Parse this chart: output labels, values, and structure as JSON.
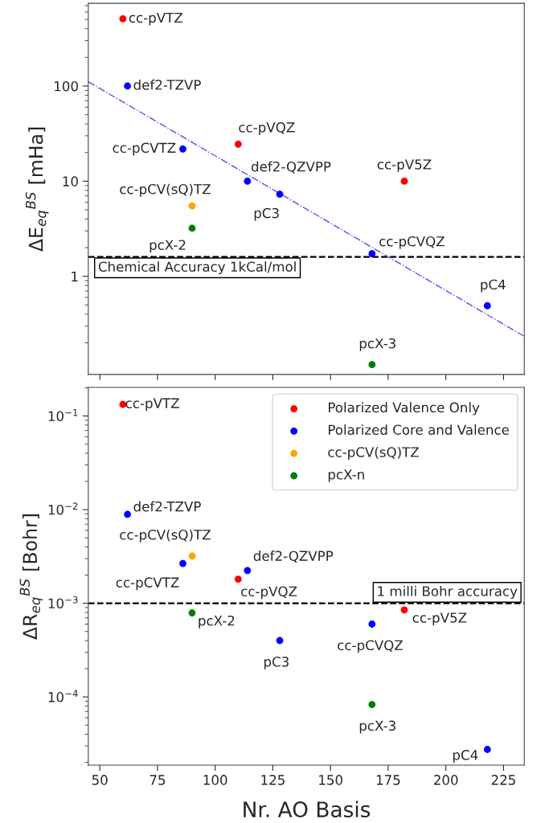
{
  "chart_data": [
    {
      "type": "scatter",
      "ylabel": "ΔE$_{eq}$$^{BS}$ [mHa]",
      "log": "y",
      "marker": "circle",
      "tick_labels": "y",
      "legend": false,
      "xlim": [
        45,
        234
      ],
      "xticks": [
        50,
        75,
        100,
        125,
        150,
        175,
        200,
        225
      ],
      "ylim": [
        0.093,
        740
      ],
      "yticks": [
        1,
        10,
        100
      ],
      "series": [
        {
          "color": "#ff0000",
          "x": [
            60,
            110,
            182
          ],
          "values": [
            508,
            24.5,
            10
          ]
        },
        {
          "color": "#0000ff",
          "x": [
            62,
            86,
            114,
            128,
            168,
            218
          ],
          "values": [
            100,
            21.8,
            10,
            7.3,
            1.73,
            0.49
          ]
        },
        {
          "color": "#ffa500",
          "x": [
            90
          ],
          "values": [
            5.5
          ]
        },
        {
          "color": "#008000",
          "x": [
            90,
            168
          ],
          "values": [
            3.2,
            0.118
          ]
        },
        {
          "type": "line",
          "color": "#5050ff",
          "line_style": "dashdot",
          "marker": "none",
          "x": [
            45,
            234
          ],
          "values": [
            111,
            0.234
          ]
        }
      ],
      "ref_lines": [
        {
          "axis": "y",
          "value": 1.6,
          "label": "Chemical Accuracy 1kCal/mol",
          "color": "#000000",
          "line_style": "dashed"
        }
      ],
      "annotations": [
        {
          "text": "cc-pVTZ",
          "x": 60,
          "y": 508
        },
        {
          "text": "def2-TZVP",
          "x": 62,
          "y": 100
        },
        {
          "text": "cc-pCVTZ",
          "x": 86,
          "y": 21.8
        },
        {
          "text": "cc-pVQZ",
          "x": 110,
          "y": 24.5
        },
        {
          "text": "def2-QZVPP",
          "x": 114,
          "y": 10
        },
        {
          "text": "pC3",
          "x": 128,
          "y": 7.3
        },
        {
          "text": "cc-pV5Z",
          "x": 182,
          "y": 10
        },
        {
          "text": "cc-pCV(sQ)TZ",
          "x": 90,
          "y": 5.5
        },
        {
          "text": "pcX-2",
          "x": 90,
          "y": 3.2
        },
        {
          "text": "cc-pCVQZ",
          "x": 168,
          "y": 1.73
        },
        {
          "text": "pC4",
          "x": 218,
          "y": 0.49
        },
        {
          "text": "pcX-3",
          "x": 168,
          "y": 0.118
        }
      ]
    },
    {
      "type": "scatter",
      "ylabel": "ΔR$_{eq}$$^{BS}$ [Bohr]",
      "xlabel": "Nr. AO Basis",
      "log": "y",
      "marker": "circle",
      "legend": "top right",
      "xlim": [
        45,
        234
      ],
      "xticks": [
        50,
        75,
        100,
        125,
        150,
        175,
        200,
        225
      ],
      "ylim": [
        1.87e-05,
        0.202
      ],
      "yticks": [
        {
          "value": 0.1,
          "label": "10$^{−1}$"
        },
        {
          "value": 0.01,
          "label": "10$^{−2}$"
        },
        {
          "value": 0.001,
          "label": "10$^{−3}$"
        },
        {
          "value": 0.0001,
          "label": "10$^{−4}$"
        }
      ],
      "series": [
        {
          "name": "Polarized Valence Only",
          "color": "#ff0000",
          "x": [
            60,
            110,
            182
          ],
          "values": [
            0.133,
            0.00181,
            0.00085
          ]
        },
        {
          "name": "Polarized Core and Valence",
          "color": "#0000ff",
          "x": [
            62,
            86,
            114,
            128,
            168,
            218
          ],
          "values": [
            0.0089,
            0.00266,
            0.00224,
            0.0004,
            0.0006,
            2.75e-05
          ]
        },
        {
          "name": "cc-pCV(sQ)TZ",
          "color": "#ffa500",
          "x": [
            90
          ],
          "values": [
            0.0032
          ]
        },
        {
          "name": "pcX-n",
          "color": "#008000",
          "x": [
            90,
            168
          ],
          "values": [
            0.00079,
            8.3e-05
          ]
        }
      ],
      "ref_lines": [
        {
          "axis": "y",
          "value": 0.001,
          "label": "1 milli Bohr accuracy",
          "color": "#000000",
          "line_style": "dashed"
        }
      ],
      "annotations": [
        {
          "text": "cc-pVTZ",
          "x": 60,
          "y": 0.133
        },
        {
          "text": "def2-TZVP",
          "x": 62,
          "y": 0.0089
        },
        {
          "text": "cc-pCV(sQ)TZ",
          "x": 90,
          "y": 0.0032
        },
        {
          "text": "cc-pCVTZ",
          "x": 86,
          "y": 0.00266
        },
        {
          "text": "def2-QZVPP",
          "x": 114,
          "y": 0.00224
        },
        {
          "text": "cc-pVQZ",
          "x": 110,
          "y": 0.00181
        },
        {
          "text": "pcX-2",
          "x": 90,
          "y": 0.00079
        },
        {
          "text": "cc-pV5Z",
          "x": 182,
          "y": 0.00085
        },
        {
          "text": "cc-pCVQZ",
          "x": 168,
          "y": 0.0006
        },
        {
          "text": "pC3",
          "x": 128,
          "y": 0.0004
        },
        {
          "text": "pcX-3",
          "x": 168,
          "y": 8.3e-05
        },
        {
          "text": "pC4",
          "x": 218,
          "y": 2.75e-05
        }
      ]
    }
  ]
}
